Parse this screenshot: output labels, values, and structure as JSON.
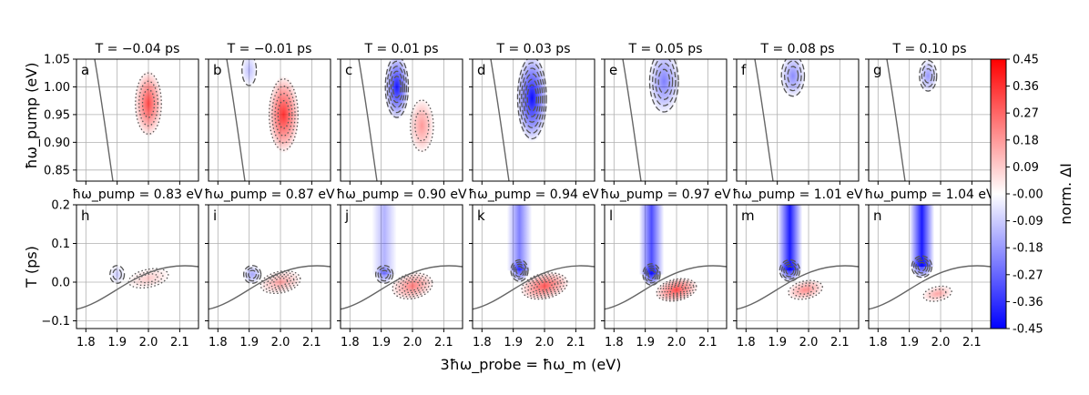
{
  "figure": {
    "xlabel": "3ħω_probe = ħω_m (eV)",
    "top_ylabel": "ħω_pump (eV)",
    "bottom_ylabel": "T (ps)",
    "colorbar_label": "norm. ΔI"
  },
  "chart_data": [
    {
      "type": "heatmap",
      "row": "top",
      "panels": [
        {
          "label": "a",
          "title": "T = −0.04 ps",
          "T_ps": -0.04
        },
        {
          "label": "b",
          "title": "T = −0.01 ps",
          "T_ps": -0.01
        },
        {
          "label": "c",
          "title": "T = 0.01 ps",
          "T_ps": 0.01
        },
        {
          "label": "d",
          "title": "T = 0.03 ps",
          "T_ps": 0.03
        },
        {
          "label": "e",
          "title": "T = 0.05 ps",
          "T_ps": 0.05
        },
        {
          "label": "f",
          "title": "T = 0.08 ps",
          "T_ps": 0.08
        },
        {
          "label": "g",
          "title": "T = 0.10 ps",
          "T_ps": 0.1
        }
      ],
      "xlim": [
        1.77,
        2.16
      ],
      "ylim": [
        0.83,
        1.05
      ],
      "xticks": [
        "1.8",
        "1.9",
        "2.0",
        "2.1"
      ],
      "yticks": [
        "0.85",
        "0.90",
        "0.95",
        "1.00",
        "1.05"
      ],
      "grid": true
    },
    {
      "type": "heatmap",
      "row": "bottom",
      "panels": [
        {
          "label": "h",
          "title": "ħω_pump = 0.83 eV",
          "pump_eV": 0.83
        },
        {
          "label": "i",
          "title": "ħω_pump = 0.87 eV",
          "pump_eV": 0.87
        },
        {
          "label": "j",
          "title": "ħω_pump = 0.90 eV",
          "pump_eV": 0.9
        },
        {
          "label": "k",
          "title": "ħω_pump = 0.94 eV",
          "pump_eV": 0.94
        },
        {
          "label": "l",
          "title": "ħω_pump = 0.97 eV",
          "pump_eV": 0.97
        },
        {
          "label": "m",
          "title": "ħω_pump = 1.01 eV",
          "pump_eV": 1.01
        },
        {
          "label": "n",
          "title": "ħω_pump = 1.04 eV",
          "pump_eV": 1.04
        }
      ],
      "xlim": [
        1.77,
        2.16
      ],
      "ylim": [
        -0.12,
        0.2
      ],
      "xticks": [
        "1.8",
        "1.9",
        "2.0",
        "2.1"
      ],
      "yticks": [
        "−0.1",
        "0.0",
        "0.1",
        "0.2"
      ],
      "grid": true
    },
    {
      "type": "colorbar",
      "colormap": "bwr",
      "vmin": -0.45,
      "vmax": 0.45,
      "ticks": [
        "0.45",
        "0.36",
        "0.27",
        "0.18",
        "0.09",
        "-0.00",
        "-0.09",
        "-0.18",
        "-0.27",
        "-0.36",
        "-0.45"
      ],
      "colors": {
        "negative": "#0000ff",
        "zero": "#ffffff",
        "positive": "#ff0000"
      }
    }
  ]
}
